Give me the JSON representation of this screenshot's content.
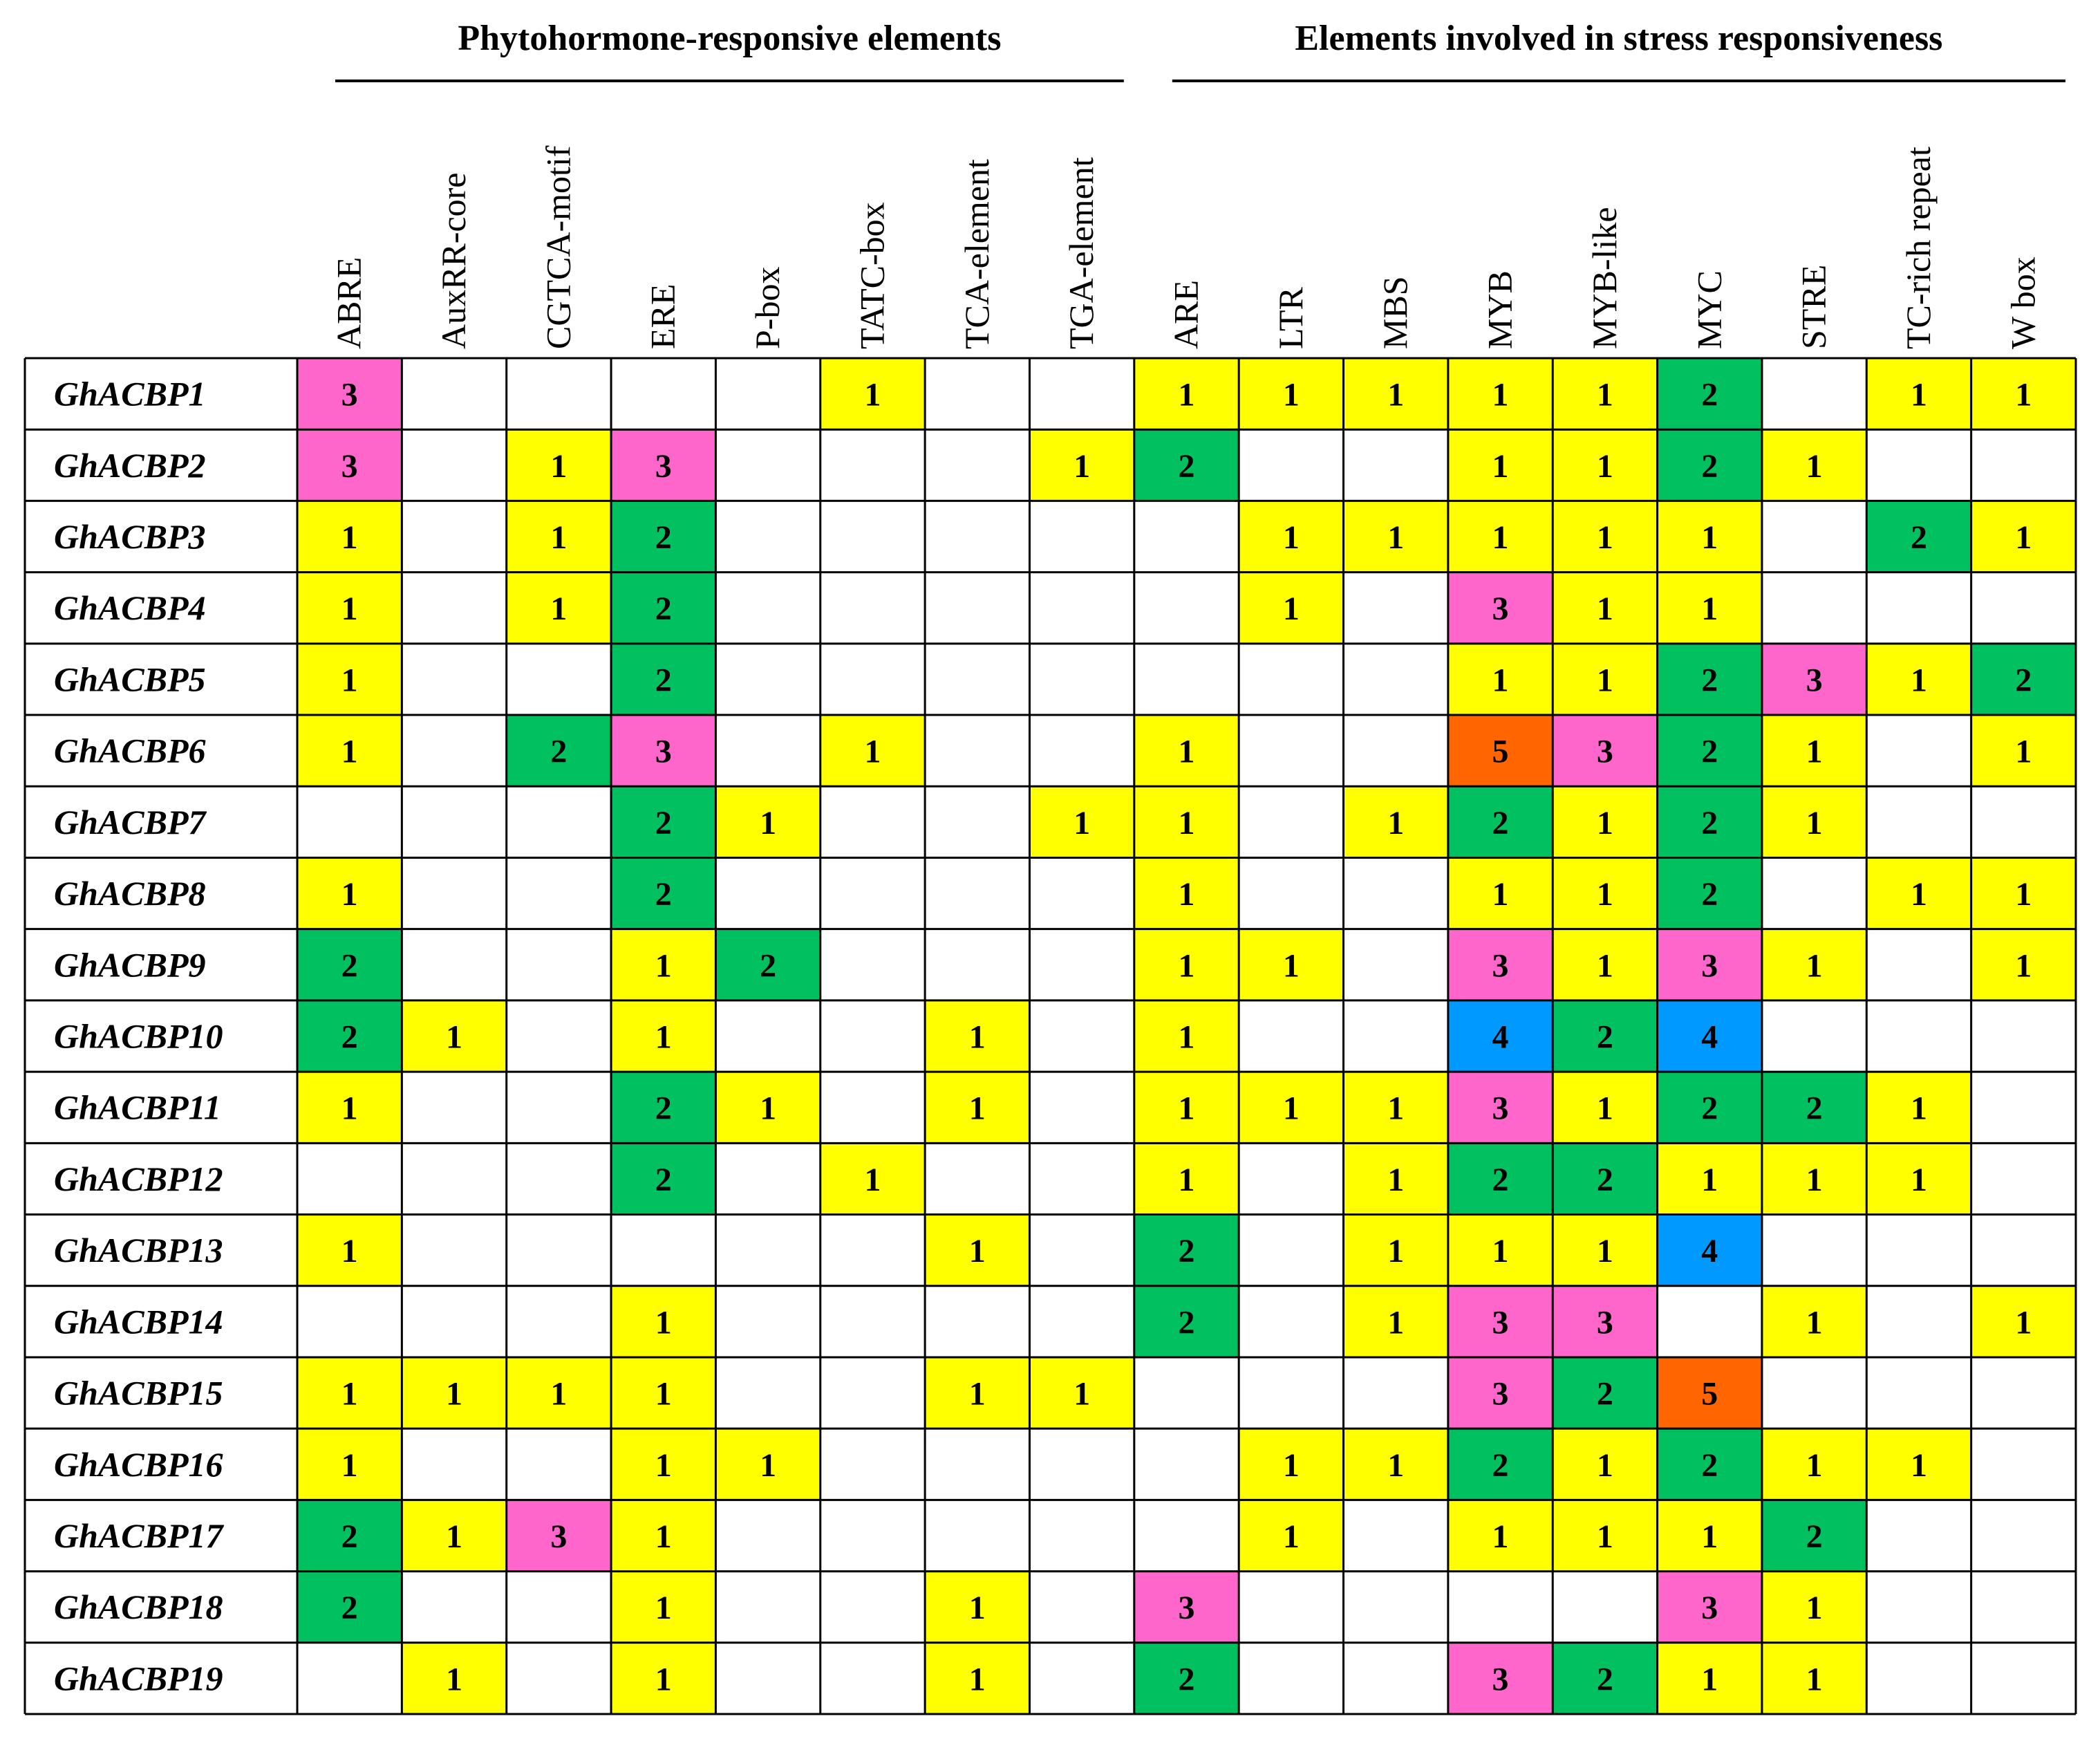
{
  "chart_data": {
    "type": "heatmap",
    "title": "",
    "column_groups": [
      {
        "label": "Phytohormone-responsive elements",
        "start": 0,
        "end": 7
      },
      {
        "label": "Elements involved in stress responsiveness",
        "start": 8,
        "end": 16
      }
    ],
    "columns": [
      "ABRE",
      "AuxRR-core",
      "CGTCA-motif",
      "ERE",
      "P-box",
      "TATC-box",
      "TCA-element",
      "TGA-element",
      "ARE",
      "LTR",
      "MBS",
      "MYB",
      "MYB-like",
      "MYC",
      "STRE",
      "TC-rich repeat",
      "W box"
    ],
    "rows": [
      "GhACBP1",
      "GhACBP2",
      "GhACBP3",
      "GhACBP4",
      "GhACBP5",
      "GhACBP6",
      "GhACBP7",
      "GhACBP8",
      "GhACBP9",
      "GhACBP10",
      "GhACBP11",
      "GhACBP12",
      "GhACBP13",
      "GhACBP14",
      "GhACBP15",
      "GhACBP16",
      "GhACBP17",
      "GhACBP18",
      "GhACBP19"
    ],
    "values": [
      [
        3,
        null,
        null,
        null,
        null,
        1,
        null,
        null,
        1,
        1,
        1,
        1,
        1,
        2,
        null,
        1,
        1
      ],
      [
        3,
        null,
        1,
        3,
        null,
        null,
        null,
        1,
        2,
        null,
        null,
        1,
        1,
        2,
        1,
        null,
        null
      ],
      [
        1,
        null,
        1,
        2,
        null,
        null,
        null,
        null,
        null,
        1,
        1,
        1,
        1,
        1,
        null,
        2,
        1
      ],
      [
        1,
        null,
        1,
        2,
        null,
        null,
        null,
        null,
        null,
        1,
        null,
        3,
        1,
        1,
        null,
        null,
        null
      ],
      [
        1,
        null,
        null,
        2,
        null,
        null,
        null,
        null,
        null,
        null,
        null,
        1,
        1,
        2,
        3,
        1,
        2
      ],
      [
        1,
        null,
        2,
        3,
        null,
        1,
        null,
        null,
        1,
        null,
        null,
        5,
        3,
        2,
        1,
        null,
        1
      ],
      [
        null,
        null,
        null,
        2,
        1,
        null,
        null,
        1,
        1,
        null,
        1,
        2,
        1,
        2,
        1,
        null,
        null
      ],
      [
        1,
        null,
        null,
        2,
        null,
        null,
        null,
        null,
        1,
        null,
        null,
        1,
        1,
        2,
        null,
        1,
        1
      ],
      [
        2,
        null,
        null,
        1,
        2,
        null,
        null,
        null,
        1,
        1,
        null,
        3,
        1,
        3,
        1,
        null,
        1
      ],
      [
        2,
        1,
        null,
        1,
        null,
        null,
        1,
        null,
        1,
        null,
        null,
        4,
        2,
        4,
        null,
        null,
        null
      ],
      [
        1,
        null,
        null,
        2,
        1,
        null,
        1,
        null,
        1,
        1,
        1,
        3,
        1,
        2,
        2,
        1,
        null
      ],
      [
        null,
        null,
        null,
        2,
        null,
        1,
        null,
        null,
        1,
        null,
        1,
        2,
        2,
        1,
        1,
        1,
        null
      ],
      [
        1,
        null,
        null,
        null,
        null,
        null,
        1,
        null,
        2,
        null,
        1,
        1,
        1,
        4,
        null,
        null,
        null
      ],
      [
        null,
        null,
        null,
        1,
        null,
        null,
        null,
        null,
        2,
        null,
        1,
        3,
        3,
        null,
        1,
        null,
        1
      ],
      [
        1,
        1,
        1,
        1,
        null,
        null,
        1,
        1,
        null,
        null,
        null,
        3,
        2,
        5,
        null,
        null,
        null
      ],
      [
        1,
        null,
        null,
        1,
        1,
        null,
        null,
        null,
        null,
        1,
        1,
        2,
        1,
        2,
        1,
        1,
        null
      ],
      [
        2,
        1,
        3,
        1,
        null,
        null,
        null,
        null,
        null,
        1,
        null,
        1,
        1,
        1,
        2,
        null,
        null
      ],
      [
        2,
        null,
        null,
        1,
        null,
        null,
        1,
        null,
        3,
        null,
        null,
        null,
        null,
        3,
        1,
        null,
        null
      ],
      [
        null,
        1,
        null,
        1,
        null,
        null,
        1,
        null,
        2,
        null,
        null,
        3,
        2,
        1,
        1,
        null,
        null
      ]
    ],
    "color_scale": {
      "1": "#ffff00",
      "2": "#00c060",
      "3": "#ff66cc",
      "4": "#0099ff",
      "5": "#ff6600"
    },
    "empty_color": "#ffffff",
    "grid": true
  }
}
